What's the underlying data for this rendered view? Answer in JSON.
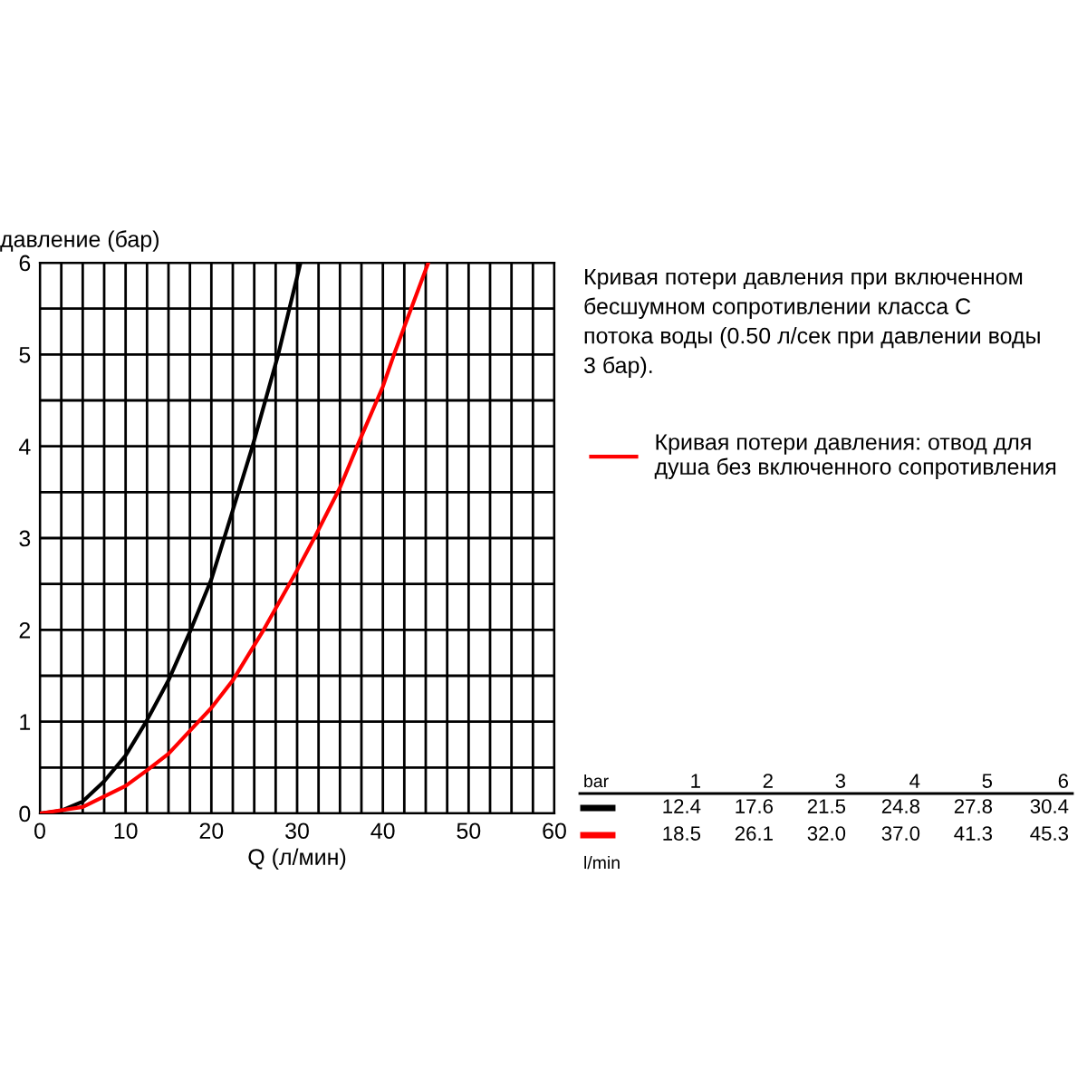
{
  "chart_data": {
    "type": "line",
    "xlabel": "Q (л/мин)",
    "ylabel": "давление (бар)",
    "series": [
      {
        "color": "#000000",
        "x": [
          0,
          2.5,
          5,
          7.5,
          10,
          12.4,
          15,
          17.6,
          20,
          21.5,
          24.8,
          27.8,
          30.4
        ],
        "values": [
          0,
          0.03,
          0.13,
          0.35,
          0.63,
          1,
          1.45,
          2,
          2.55,
          3,
          4,
          5,
          6
        ]
      },
      {
        "name": "Кривая потери давления: отвод для\nдуша без включенного сопротивления",
        "color": "#ff0000",
        "x": [
          0,
          5,
          10,
          12.5,
          15,
          18.5,
          20,
          22.5,
          26.1,
          30,
          32.0,
          35,
          37.0,
          40,
          41.3,
          45.3
        ],
        "values": [
          0,
          0.07,
          0.3,
          0.47,
          0.65,
          1,
          1.15,
          1.45,
          2,
          2.65,
          3,
          3.55,
          4,
          4.65,
          5,
          6
        ]
      }
    ],
    "annotations": [
      "Кривая потери давления при включенном\nбесшумном сопротивлении класса С\nпотока воды (0.50 л/сек при давлении воды\n3 бар).",
      "bar",
      "l/min",
      "1",
      "2",
      "3",
      "4",
      "5",
      "6",
      "12.4",
      "17.6",
      "21.5",
      "24.8",
      "27.8",
      "30.4",
      "18.5",
      "26.1",
      "32.0",
      "37.0",
      "41.3",
      "45.3"
    ],
    "xlim": [
      0,
      60
    ],
    "ylim": [
      0,
      6
    ],
    "xticks": [
      0,
      {
        "value": 2.5,
        "label": null
      },
      {
        "value": 5,
        "label": null
      },
      {
        "value": 7.5,
        "label": null
      },
      10,
      {
        "value": 12.5,
        "label": null
      },
      {
        "value": 15,
        "label": null
      },
      {
        "value": 17.5,
        "label": null
      },
      20,
      {
        "value": 22.5,
        "label": null
      },
      {
        "value": 25,
        "label": null
      },
      {
        "value": 27.5,
        "label": null
      },
      30,
      {
        "value": 32.5,
        "label": null
      },
      {
        "value": 35,
        "label": null
      },
      {
        "value": 37.5,
        "label": null
      },
      40,
      {
        "value": 42.5,
        "label": null
      },
      {
        "value": 45,
        "label": null
      },
      {
        "value": 47.5,
        "label": null
      },
      50,
      {
        "value": 52.5,
        "label": null
      },
      {
        "value": 55,
        "label": null
      },
      {
        "value": 57.5,
        "label": null
      },
      60
    ],
    "yticks": [
      0,
      {
        "value": 0.5,
        "label": null
      },
      1,
      {
        "value": 1.5,
        "label": null
      },
      2,
      {
        "value": 2.5,
        "label": null
      },
      3,
      {
        "value": 3.5,
        "label": null
      },
      4,
      {
        "value": 4.5,
        "label": null
      },
      5,
      {
        "value": 5.5,
        "label": null
      },
      6
    ],
    "grid": true,
    "legend": "right",
    "marker": "none",
    "line_style": "solid"
  }
}
